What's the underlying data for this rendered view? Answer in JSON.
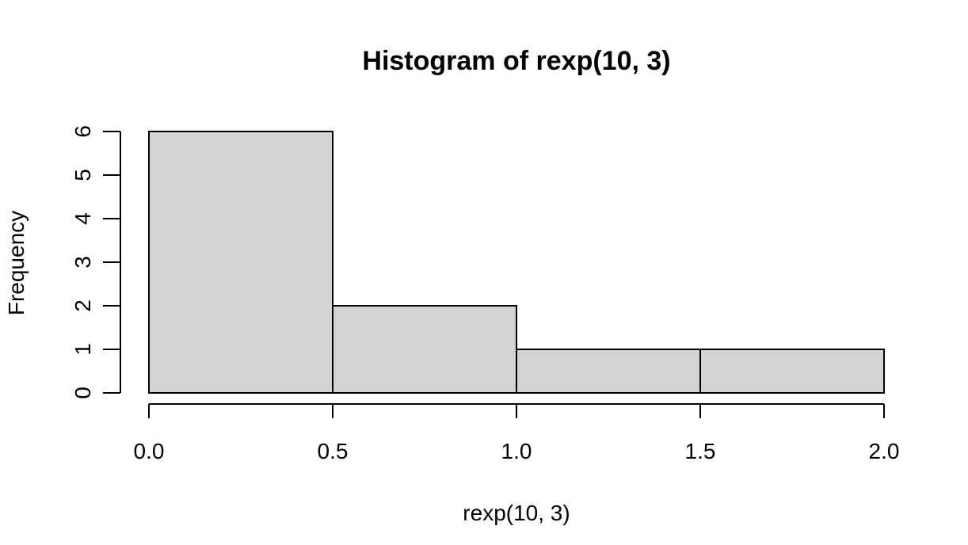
{
  "chart_data": {
    "type": "bar",
    "title": "Histogram of rexp(10, 3)",
    "xlabel": "rexp(10, 3)",
    "ylabel": "Frequency",
    "bins": [
      {
        "from": 0.0,
        "to": 0.5,
        "count": 6
      },
      {
        "from": 0.5,
        "to": 1.0,
        "count": 2
      },
      {
        "from": 1.0,
        "to": 1.5,
        "count": 1
      },
      {
        "from": 1.5,
        "to": 2.0,
        "count": 1
      }
    ],
    "xlim": [
      0,
      2
    ],
    "ylim": [
      0,
      6
    ],
    "x_ticks": [
      "0.0",
      "0.5",
      "1.0",
      "1.5",
      "2.0"
    ],
    "y_ticks": [
      "0",
      "1",
      "2",
      "3",
      "4",
      "5",
      "6"
    ],
    "bar_fill": "#d3d3d3",
    "bar_stroke": "#000000",
    "grid": false
  }
}
